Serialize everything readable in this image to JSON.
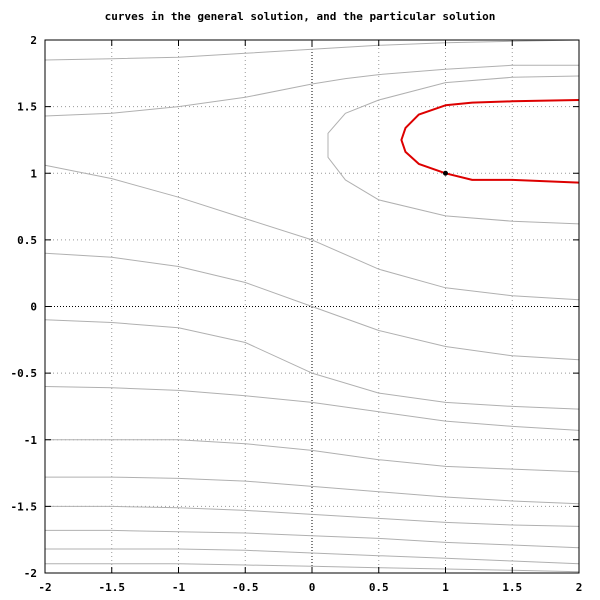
{
  "chart_data": {
    "type": "line",
    "title": "curves in the general solution, and the particular solution",
    "xlabel": "",
    "ylabel": "",
    "xlim": [
      -2,
      2
    ],
    "ylim": [
      -2,
      2
    ],
    "x_ticks": [
      "-2",
      "-1.5",
      "-1",
      "-0.5",
      "0",
      "0.5",
      "1",
      "1.5",
      "2"
    ],
    "y_ticks": [
      "-2",
      "-1.5",
      "-1",
      "-0.5",
      "0",
      "0.5",
      "1",
      "1.5",
      "2"
    ],
    "grid": true,
    "zero_axes": true,
    "colors": {
      "general": "#b0b0b0",
      "particular": "#dd0000",
      "point": "#000000",
      "grid": "#999999"
    },
    "series": [
      {
        "kind": "general",
        "x": [
          -2,
          -1.5,
          -1,
          -0.5,
          0,
          0.5,
          1,
          1.5,
          2
        ],
        "y": [
          -1.93,
          -1.93,
          -1.93,
          -1.94,
          -1.95,
          -1.96,
          -1.97,
          -1.98,
          -1.99
        ]
      },
      {
        "kind": "general",
        "x": [
          -2,
          -1.5,
          -1,
          -0.5,
          0,
          0.5,
          1,
          1.5,
          2
        ],
        "y": [
          -1.82,
          -1.82,
          -1.82,
          -1.83,
          -1.85,
          -1.87,
          -1.89,
          -1.91,
          -1.93
        ]
      },
      {
        "kind": "general",
        "x": [
          -2,
          -1.5,
          -1,
          -0.5,
          0,
          0.5,
          1,
          1.5,
          2
        ],
        "y": [
          -1.68,
          -1.68,
          -1.69,
          -1.7,
          -1.72,
          -1.74,
          -1.77,
          -1.79,
          -1.81
        ]
      },
      {
        "kind": "general",
        "x": [
          -2,
          -1.5,
          -1,
          -0.5,
          0,
          0.5,
          1,
          1.5,
          2
        ],
        "y": [
          -1.5,
          -1.5,
          -1.51,
          -1.53,
          -1.56,
          -1.59,
          -1.62,
          -1.64,
          -1.65
        ]
      },
      {
        "kind": "general",
        "x": [
          -2,
          -1.5,
          -1,
          -0.5,
          0,
          0.5,
          1,
          1.5,
          2
        ],
        "y": [
          -1.28,
          -1.28,
          -1.29,
          -1.31,
          -1.35,
          -1.39,
          -1.43,
          -1.46,
          -1.48
        ]
      },
      {
        "kind": "general",
        "x": [
          -2,
          -1.5,
          -1,
          -0.5,
          0,
          0.5,
          1,
          1.5,
          2
        ],
        "y": [
          -1.0,
          -1.0,
          -1.0,
          -1.03,
          -1.08,
          -1.15,
          -1.2,
          -1.22,
          -1.24
        ]
      },
      {
        "kind": "general",
        "x": [
          -2,
          -1.5,
          -1,
          -0.5,
          0,
          0.5,
          1,
          1.5,
          2
        ],
        "y": [
          -0.6,
          -0.61,
          -0.63,
          -0.67,
          -0.72,
          -0.79,
          -0.86,
          -0.9,
          -0.93
        ]
      },
      {
        "kind": "general",
        "x": [
          -2,
          -1.5,
          -1,
          -0.5,
          0,
          0.5,
          1,
          1.5,
          2
        ],
        "y": [
          -0.1,
          -0.12,
          -0.16,
          -0.27,
          -0.5,
          -0.65,
          -0.72,
          -0.75,
          -0.77
        ]
      },
      {
        "kind": "general",
        "x": [
          -2,
          -1.5,
          -1,
          -0.5,
          0,
          0.5,
          1,
          1.5,
          2
        ],
        "y": [
          0.4,
          0.37,
          0.3,
          0.18,
          0.0,
          -0.18,
          -0.3,
          -0.37,
          -0.4
        ]
      },
      {
        "kind": "general",
        "x": [
          -2,
          -1.5,
          -1,
          -0.5,
          0,
          0.5,
          1,
          1.5,
          2
        ],
        "y": [
          1.06,
          0.96,
          0.82,
          0.66,
          0.5,
          0.28,
          0.14,
          0.08,
          0.05
        ]
      },
      {
        "kind": "general",
        "x": [
          -2,
          -1.5,
          -1,
          -0.5,
          0,
          0.25,
          0.5,
          1,
          1.5,
          2
        ],
        "y": [
          1.43,
          1.45,
          1.5,
          1.57,
          1.67,
          1.71,
          1.74,
          1.78,
          1.81,
          1.81
        ]
      },
      {
        "kind": "general",
        "x": [
          2,
          1.5,
          1,
          0.5,
          0.25,
          0.12,
          0.12,
          0.25,
          0.5,
          1,
          1.5,
          2
        ],
        "y": [
          0.62,
          0.64,
          0.68,
          0.8,
          0.95,
          1.12,
          1.3,
          1.45,
          1.55,
          1.68,
          1.72,
          1.73
        ]
      },
      {
        "kind": "general",
        "x": [
          -2,
          -1.5,
          -1,
          -0.5,
          0,
          0.5,
          1,
          1.5,
          2
        ],
        "y": [
          1.85,
          1.86,
          1.87,
          1.9,
          1.93,
          1.96,
          1.98,
          1.99,
          2.0
        ]
      },
      {
        "kind": "particular",
        "x": [
          2,
          1.5,
          1.2,
          1.0,
          0.8,
          0.7,
          0.67,
          0.7,
          0.8,
          1.0,
          1.2,
          1.5,
          2
        ],
        "y": [
          0.93,
          0.95,
          0.95,
          1.0,
          1.07,
          1.16,
          1.25,
          1.34,
          1.44,
          1.51,
          1.53,
          1.54,
          1.55
        ]
      }
    ],
    "points": [
      {
        "x": 1,
        "y": 1
      }
    ]
  }
}
